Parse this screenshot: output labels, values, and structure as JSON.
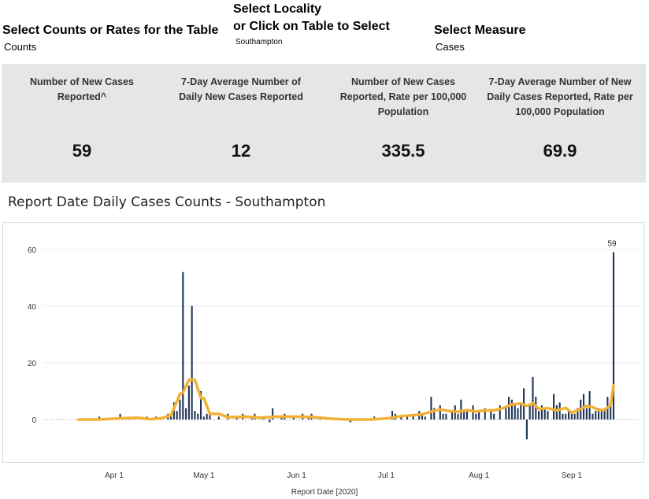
{
  "filters": {
    "counts_rates": {
      "title": "Select Counts or Rates for the Table",
      "value": "Counts"
    },
    "locality": {
      "title_line1": "Select Locality",
      "title_line2": "or Click on Table to Select",
      "value": "Southampton"
    },
    "measure": {
      "title": "Select Measure",
      "value": "Cases"
    }
  },
  "kpis": [
    {
      "label": "Number of New Cases Reported^",
      "value": "59"
    },
    {
      "label": "7-Day Average Number of Daily New Cases Reported",
      "value": "12"
    },
    {
      "label": "Number of New Cases Reported, Rate per 100,000 Population",
      "value": "335.5"
    },
    {
      "label": "7-Day Average Number of New Daily Cases Reported, Rate per 100,000 Population",
      "value": "69.9"
    }
  ],
  "colors": {
    "bar": "#1f3556",
    "avg_line": "#f2b134",
    "kpi_bg": "#e6e6e6"
  },
  "chart_data": {
    "type": "bar",
    "title": "Report Date Daily Cases Counts - Southampton",
    "xlabel": "Report Date [2020]",
    "ylabel": "",
    "x_start": "2020-03-17",
    "x_end": "2020-09-15",
    "ylim": [
      -15,
      68
    ],
    "yticks": [
      0,
      20,
      40,
      60
    ],
    "xticks": [
      {
        "date": "2020-04-01",
        "label": "Apr 1"
      },
      {
        "date": "2020-05-01",
        "label": "May 1"
      },
      {
        "date": "2020-06-01",
        "label": "Jun 1"
      },
      {
        "date": "2020-07-01",
        "label": "Jul 1"
      },
      {
        "date": "2020-08-01",
        "label": "Aug 1"
      },
      {
        "date": "2020-09-01",
        "label": "Sep 1"
      }
    ],
    "grid": true,
    "series": [
      {
        "kind": "bar",
        "values": [
          [
            "2020-03-27",
            1
          ],
          [
            "2020-04-03",
            2
          ],
          [
            "2020-04-06",
            1
          ],
          [
            "2020-04-12",
            1
          ],
          [
            "2020-04-15",
            1
          ],
          [
            "2020-04-19",
            2
          ],
          [
            "2020-04-20",
            1
          ],
          [
            "2020-04-21",
            6
          ],
          [
            "2020-04-22",
            3
          ],
          [
            "2020-04-23",
            7
          ],
          [
            "2020-04-24",
            52
          ],
          [
            "2020-04-25",
            4
          ],
          [
            "2020-04-26",
            12
          ],
          [
            "2020-04-27",
            40
          ],
          [
            "2020-04-28",
            3
          ],
          [
            "2020-04-29",
            2
          ],
          [
            "2020-04-30",
            10
          ],
          [
            "2020-05-01",
            1
          ],
          [
            "2020-05-02",
            2
          ],
          [
            "2020-05-03",
            2
          ],
          [
            "2020-05-06",
            1
          ],
          [
            "2020-05-09",
            2
          ],
          [
            "2020-05-12",
            1
          ],
          [
            "2020-05-14",
            2
          ],
          [
            "2020-05-17",
            1
          ],
          [
            "2020-05-18",
            2
          ],
          [
            "2020-05-21",
            1
          ],
          [
            "2020-05-23",
            -1
          ],
          [
            "2020-05-24",
            4
          ],
          [
            "2020-05-27",
            1
          ],
          [
            "2020-05-28",
            2
          ],
          [
            "2020-05-31",
            1
          ],
          [
            "2020-06-03",
            2
          ],
          [
            "2020-06-05",
            1
          ],
          [
            "2020-06-06",
            2
          ],
          [
            "2020-06-09",
            1
          ],
          [
            "2020-06-19",
            -1
          ],
          [
            "2020-06-27",
            1
          ],
          [
            "2020-07-03",
            3
          ],
          [
            "2020-07-04",
            2
          ],
          [
            "2020-07-06",
            1
          ],
          [
            "2020-07-08",
            1
          ],
          [
            "2020-07-10",
            2
          ],
          [
            "2020-07-12",
            3
          ],
          [
            "2020-07-13",
            2
          ],
          [
            "2020-07-14",
            1
          ],
          [
            "2020-07-16",
            8
          ],
          [
            "2020-07-17",
            4
          ],
          [
            "2020-07-19",
            5
          ],
          [
            "2020-07-20",
            2
          ],
          [
            "2020-07-21",
            2
          ],
          [
            "2020-07-23",
            3
          ],
          [
            "2020-07-24",
            5
          ],
          [
            "2020-07-25",
            2
          ],
          [
            "2020-07-26",
            7
          ],
          [
            "2020-07-27",
            3
          ],
          [
            "2020-07-28",
            3
          ],
          [
            "2020-07-30",
            5
          ],
          [
            "2020-07-31",
            2
          ],
          [
            "2020-08-01",
            3
          ],
          [
            "2020-08-03",
            4
          ],
          [
            "2020-08-05",
            3
          ],
          [
            "2020-08-06",
            2
          ],
          [
            "2020-08-08",
            5
          ],
          [
            "2020-08-10",
            4
          ],
          [
            "2020-08-11",
            8
          ],
          [
            "2020-08-12",
            7
          ],
          [
            "2020-08-13",
            5
          ],
          [
            "2020-08-14",
            4
          ],
          [
            "2020-08-15",
            6
          ],
          [
            "2020-08-16",
            11
          ],
          [
            "2020-08-17",
            -7
          ],
          [
            "2020-08-18",
            5
          ],
          [
            "2020-08-19",
            15
          ],
          [
            "2020-08-20",
            8
          ],
          [
            "2020-08-21",
            3
          ],
          [
            "2020-08-22",
            5
          ],
          [
            "2020-08-23",
            4
          ],
          [
            "2020-08-24",
            3
          ],
          [
            "2020-08-26",
            9
          ],
          [
            "2020-08-27",
            5
          ],
          [
            "2020-08-28",
            6
          ],
          [
            "2020-08-29",
            2
          ],
          [
            "2020-08-30",
            2
          ],
          [
            "2020-08-31",
            3
          ],
          [
            "2020-09-01",
            2
          ],
          [
            "2020-09-02",
            2
          ],
          [
            "2020-09-03",
            4
          ],
          [
            "2020-09-04",
            7
          ],
          [
            "2020-09-05",
            9
          ],
          [
            "2020-09-06",
            4
          ],
          [
            "2020-09-07",
            10
          ],
          [
            "2020-09-08",
            2
          ],
          [
            "2020-09-09",
            3
          ],
          [
            "2020-09-10",
            4
          ],
          [
            "2020-09-11",
            3
          ],
          [
            "2020-09-12",
            3
          ],
          [
            "2020-09-13",
            8
          ],
          [
            "2020-09-14",
            5
          ],
          [
            "2020-09-15",
            59
          ]
        ],
        "labeled": [
          [
            "2020-09-15",
            "59"
          ]
        ]
      },
      {
        "kind": "line",
        "values": [
          [
            "2020-03-20",
            0
          ],
          [
            "2020-03-27",
            0
          ],
          [
            "2020-04-01",
            0.3
          ],
          [
            "2020-04-05",
            0.5
          ],
          [
            "2020-04-09",
            0.6
          ],
          [
            "2020-04-13",
            0.1
          ],
          [
            "2020-04-17",
            0.5
          ],
          [
            "2020-04-20",
            1.5
          ],
          [
            "2020-04-23",
            9
          ],
          [
            "2020-04-24",
            9.5
          ],
          [
            "2020-04-26",
            14
          ],
          [
            "2020-04-28",
            14
          ],
          [
            "2020-04-30",
            7.5
          ],
          [
            "2020-05-01",
            7.5
          ],
          [
            "2020-05-03",
            2
          ],
          [
            "2020-05-06",
            2
          ],
          [
            "2020-05-09",
            0.8
          ],
          [
            "2020-05-15",
            1
          ],
          [
            "2020-05-20",
            0.6
          ],
          [
            "2020-05-25",
            1
          ],
          [
            "2020-05-31",
            1
          ],
          [
            "2020-06-06",
            0.9
          ],
          [
            "2020-06-12",
            0.3
          ],
          [
            "2020-06-18",
            0
          ],
          [
            "2020-06-26",
            0
          ],
          [
            "2020-07-02",
            0.5
          ],
          [
            "2020-07-06",
            1.2
          ],
          [
            "2020-07-10",
            1.5
          ],
          [
            "2020-07-13",
            1.8
          ],
          [
            "2020-07-16",
            2.8
          ],
          [
            "2020-07-19",
            3.5
          ],
          [
            "2020-07-22",
            3
          ],
          [
            "2020-07-25",
            2.7
          ],
          [
            "2020-07-28",
            3.3
          ],
          [
            "2020-07-31",
            2.8
          ],
          [
            "2020-08-03",
            3.2
          ],
          [
            "2020-08-06",
            3.2
          ],
          [
            "2020-08-09",
            4
          ],
          [
            "2020-08-12",
            5.3
          ],
          [
            "2020-08-15",
            5.6
          ],
          [
            "2020-08-17",
            4.8
          ],
          [
            "2020-08-19",
            5.7
          ],
          [
            "2020-08-21",
            3.7
          ],
          [
            "2020-08-24",
            4
          ],
          [
            "2020-08-27",
            3.2
          ],
          [
            "2020-08-30",
            4.1
          ],
          [
            "2020-09-01",
            2.4
          ],
          [
            "2020-09-03",
            3.2
          ],
          [
            "2020-09-06",
            4.8
          ],
          [
            "2020-09-08",
            4.4
          ],
          [
            "2020-09-10",
            3.3
          ],
          [
            "2020-09-12",
            3.4
          ],
          [
            "2020-09-14",
            5
          ],
          [
            "2020-09-15",
            12
          ]
        ]
      }
    ]
  }
}
